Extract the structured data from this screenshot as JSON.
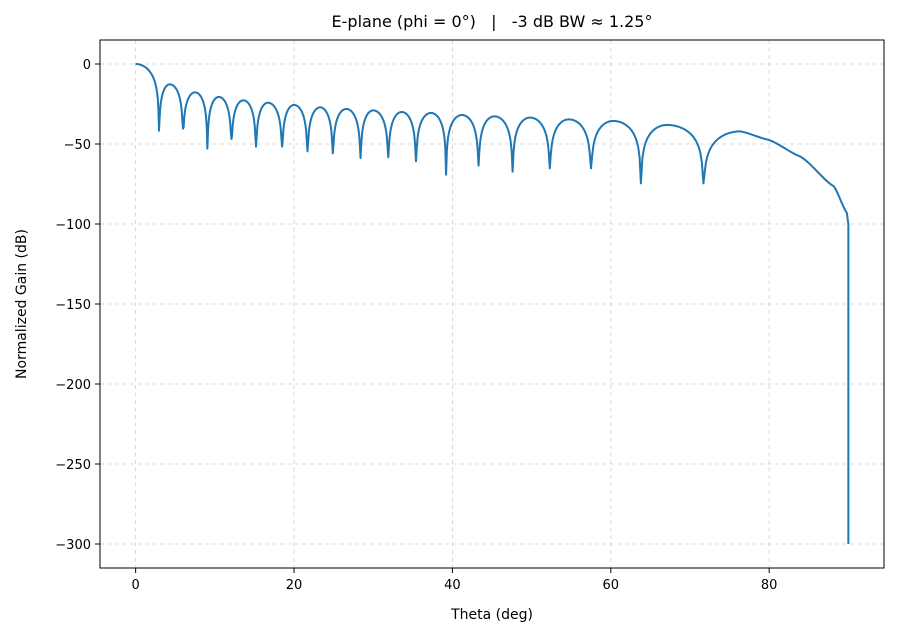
{
  "chart_data": {
    "type": "line",
    "title": "E-plane (phi = 0°)   |   -3 dB BW ≈ 1.25°",
    "xlabel": "Theta (deg)",
    "ylabel": "Normalized Gain (dB)",
    "xlim": [
      -4.5,
      94.5
    ],
    "ylim": [
      -315,
      15
    ],
    "xticks": [
      0,
      20,
      40,
      60,
      80
    ],
    "yticks": [
      0,
      -50,
      -100,
      -150,
      -200,
      -250,
      -300
    ],
    "ytick_labels": [
      "0",
      "−50",
      "−100",
      "−150",
      "−200",
      "−250",
      "−300"
    ],
    "grid": true,
    "line_color": "#1f77b4",
    "main_lobe": {
      "theta": 0,
      "db": 0
    },
    "nulls": [
      [
        2.95,
        -41.7
      ],
      [
        5.98,
        -40.4
      ],
      [
        9.06,
        -52.9
      ],
      [
        12.1,
        -46.9
      ],
      [
        15.2,
        -51.7
      ],
      [
        18.5,
        -51.7
      ],
      [
        21.7,
        -54.6
      ],
      [
        24.9,
        -55.8
      ],
      [
        28.4,
        -58.8
      ],
      [
        31.9,
        -58.3
      ],
      [
        35.4,
        -60.8
      ],
      [
        39.2,
        -69.2
      ],
      [
        43.3,
        -63.5
      ],
      [
        47.6,
        -67.3
      ],
      [
        52.3,
        -65.2
      ],
      [
        57.5,
        -65.2
      ],
      [
        63.8,
        -74.6
      ],
      [
        71.7,
        -74.6
      ]
    ],
    "sidelobe_peaks": [
      [
        4.3,
        -12.7
      ],
      [
        7.5,
        -17.7
      ],
      [
        10.5,
        -20.6
      ],
      [
        13.6,
        -22.7
      ],
      [
        16.7,
        -24.2
      ],
      [
        20.0,
        -25.6
      ],
      [
        23.3,
        -27.1
      ],
      [
        26.6,
        -28.1
      ],
      [
        30.0,
        -29.0
      ],
      [
        33.6,
        -30.0
      ],
      [
        37.3,
        -30.6
      ],
      [
        41.2,
        -31.9
      ],
      [
        45.3,
        -32.7
      ],
      [
        49.8,
        -33.5
      ],
      [
        54.7,
        -34.6
      ],
      [
        60.3,
        -35.6
      ],
      [
        67.1,
        -38.1
      ]
    ],
    "tail": [
      [
        76.4,
        -42.1
      ],
      [
        80,
        -47.5
      ],
      [
        84,
        -58
      ],
      [
        88.2,
        -76.7
      ],
      [
        89.8,
        -93
      ],
      [
        90,
        -100
      ],
      [
        90,
        -300
      ]
    ]
  }
}
